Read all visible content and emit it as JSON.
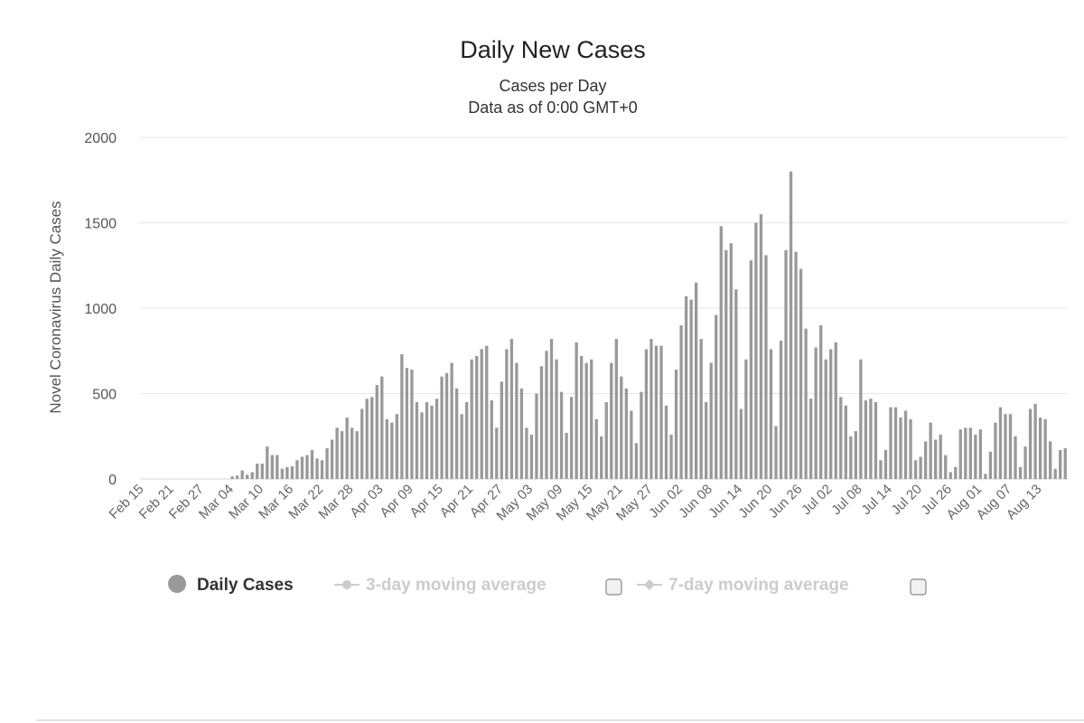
{
  "chart_data": {
    "type": "bar",
    "title": "Daily New Cases",
    "subtitle_lines": [
      "Cases per Day",
      "Data as of 0:00 GMT+0"
    ],
    "ylabel": "Novel Coronavirus Daily Cases",
    "xlabel": "",
    "ylim": [
      0,
      2000
    ],
    "yticks": [
      0,
      500,
      1000,
      1500,
      2000
    ],
    "ytick_labels": [
      "0",
      "500",
      "1000",
      "1500",
      "2000"
    ],
    "grid": true,
    "start_date": "Feb 15",
    "x_tick_labels": [
      "Feb 15",
      "Feb 21",
      "Feb 27",
      "Mar 04",
      "Mar 10",
      "Mar 16",
      "Mar 22",
      "Mar 28",
      "Apr 03",
      "Apr 09",
      "Apr 15",
      "Apr 21",
      "Apr 27",
      "May 03",
      "May 09",
      "May 15",
      "May 21",
      "May 27",
      "Jun 02",
      "Jun 08",
      "Jun 14",
      "Jun 20",
      "Jun 26",
      "Jul 02",
      "Jul 08",
      "Jul 14",
      "Jul 20",
      "Jul 26",
      "Aug 01",
      "Aug 07",
      "Aug 13"
    ],
    "bar_color": "#999999",
    "series": [
      {
        "name": "Daily Cases",
        "values": [
          0,
          0,
          0,
          0,
          0,
          0,
          0,
          0,
          0,
          0,
          0,
          0,
          0,
          0,
          0,
          0,
          0,
          0,
          15,
          20,
          50,
          25,
          40,
          90,
          90,
          190,
          140,
          140,
          60,
          70,
          75,
          110,
          130,
          140,
          170,
          120,
          110,
          180,
          230,
          300,
          280,
          360,
          300,
          280,
          410,
          470,
          480,
          550,
          600,
          350,
          330,
          380,
          730,
          650,
          640,
          450,
          390,
          450,
          430,
          470,
          600,
          620,
          680,
          530,
          380,
          450,
          700,
          720,
          760,
          780,
          460,
          300,
          570,
          760,
          820,
          680,
          530,
          300,
          260,
          500,
          660,
          750,
          820,
          700,
          510,
          270,
          480,
          800,
          720,
          680,
          700,
          350,
          250,
          450,
          680,
          820,
          600,
          530,
          400,
          210,
          510,
          760,
          820,
          780,
          780,
          430,
          260,
          640,
          900,
          1070,
          1050,
          1150,
          820,
          450,
          680,
          960,
          1480,
          1340,
          1380,
          1110,
          410,
          700,
          1280,
          1500,
          1550,
          1310,
          760,
          310,
          810,
          1340,
          1800,
          1330,
          1230,
          880,
          470,
          770,
          900,
          700,
          760,
          800,
          480,
          430,
          250,
          280,
          700,
          460,
          470,
          450,
          110,
          170,
          420,
          420,
          360,
          400,
          350,
          110,
          130,
          220,
          330,
          230,
          260,
          140,
          40,
          70,
          290,
          300,
          300,
          260,
          290,
          30,
          160,
          330,
          420,
          380,
          380,
          250,
          70,
          190,
          410,
          440,
          360,
          350,
          220,
          60,
          170,
          180
        ]
      },
      {
        "name": "3-day moving average",
        "values": []
      },
      {
        "name": "7-day moving average",
        "values": []
      }
    ],
    "legend": {
      "placement": "bottom",
      "items": [
        {
          "label": "Daily Cases",
          "active": true,
          "color": "#333333",
          "marker_color": "#999999"
        },
        {
          "label": "3-day moving average",
          "active": false,
          "color": "#cccccc",
          "marker_color": "#cccccc"
        },
        {
          "label": "7-day moving average",
          "active": false,
          "color": "#cccccc",
          "marker_color": "#cccccc"
        }
      ]
    }
  }
}
